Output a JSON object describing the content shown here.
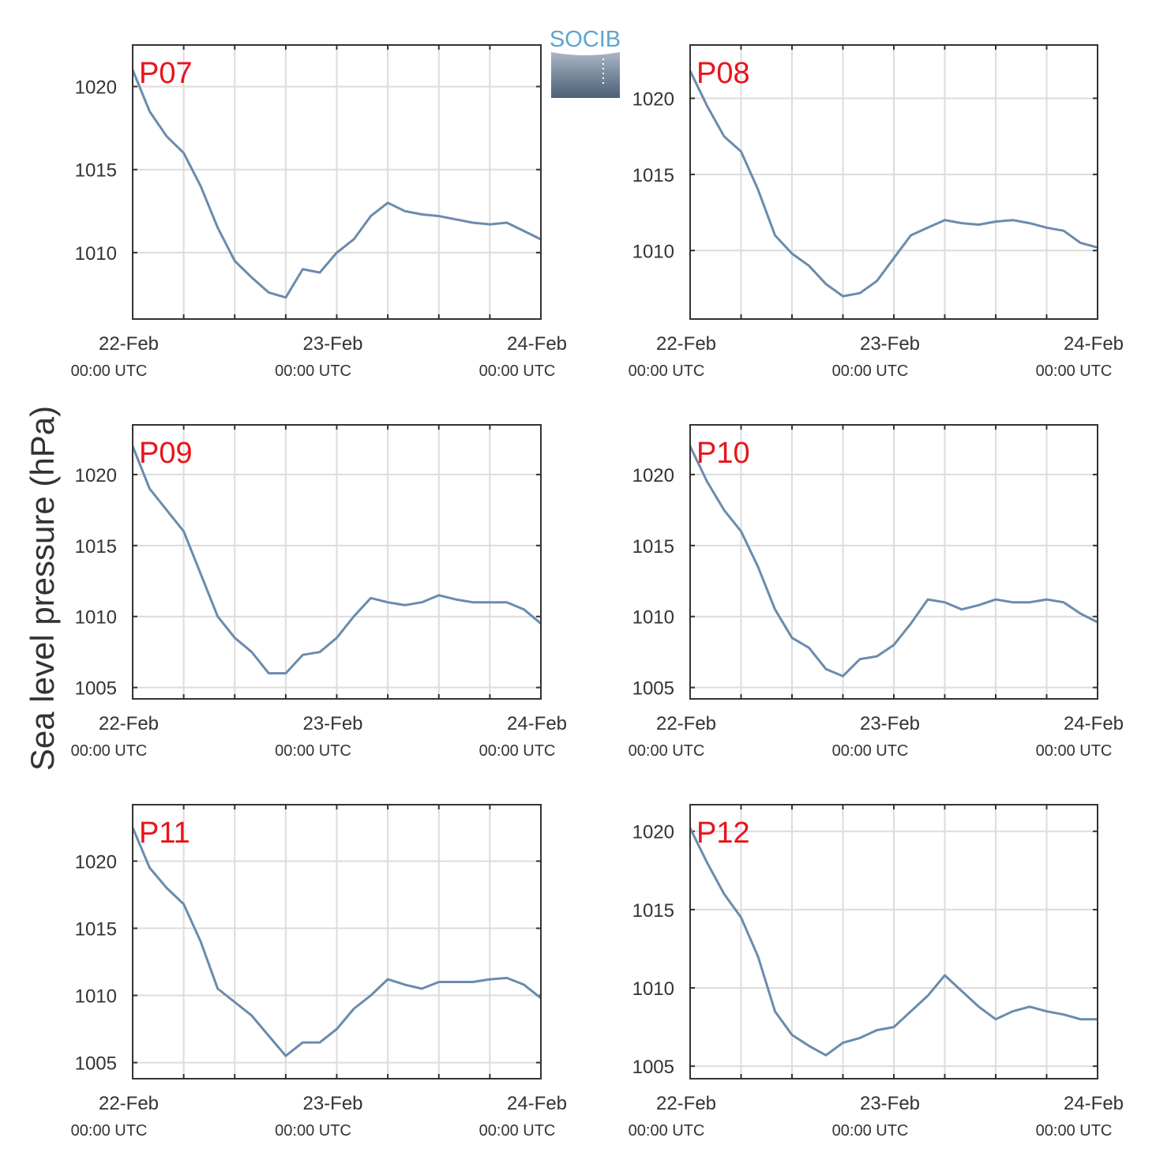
{
  "figure": {
    "ylabel": "Sea level pressure (hPa)",
    "logo_text": "SOCIB",
    "colors": {
      "line": "#6b8bac",
      "label": "#e8141b",
      "grid": "#dcdcdc",
      "axis": "#333333"
    }
  },
  "chart_data": [
    {
      "type": "line",
      "name": "P07",
      "ylim": [
        1006,
        1022.5
      ],
      "yticks": [
        1010,
        1015,
        1020
      ],
      "xticks": [
        {
          "date": "22-Feb",
          "time": "00:00 UTC"
        },
        {
          "date": "23-Feb",
          "time": "00:00 UTC"
        },
        {
          "date": "24-Feb",
          "time": "00:00 UTC"
        }
      ],
      "x_hours": [
        0,
        2,
        4,
        6,
        8,
        10,
        12,
        14,
        16,
        18,
        20,
        22,
        24,
        26,
        28,
        30,
        32,
        34,
        36,
        38,
        40,
        42,
        44,
        46,
        48
      ],
      "values": [
        1021.0,
        1018.5,
        1017.0,
        1016.0,
        1014.0,
        1011.5,
        1009.5,
        1008.5,
        1007.6,
        1007.3,
        1009.0,
        1008.8,
        1010.0,
        1010.8,
        1012.2,
        1013.0,
        1012.5,
        1012.3,
        1012.2,
        1012.0,
        1011.8,
        1011.7,
        1011.8,
        1011.3,
        1010.8
      ]
    },
    {
      "type": "line",
      "name": "P08",
      "ylim": [
        1005.5,
        1023.5
      ],
      "yticks": [
        1010,
        1015,
        1020
      ],
      "xticks": [
        {
          "date": "22-Feb",
          "time": "00:00 UTC"
        },
        {
          "date": "23-Feb",
          "time": "00:00 UTC"
        },
        {
          "date": "24-Feb",
          "time": "00:00 UTC"
        }
      ],
      "x_hours": [
        0,
        2,
        4,
        6,
        8,
        10,
        12,
        14,
        16,
        18,
        20,
        22,
        24,
        26,
        28,
        30,
        32,
        34,
        36,
        38,
        40,
        42,
        44,
        46,
        48
      ],
      "values": [
        1021.8,
        1019.5,
        1017.5,
        1016.5,
        1014.0,
        1011.0,
        1009.8,
        1009.0,
        1007.8,
        1007.0,
        1007.2,
        1008.0,
        1009.5,
        1011.0,
        1011.5,
        1012.0,
        1011.8,
        1011.7,
        1011.9,
        1012.0,
        1011.8,
        1011.5,
        1011.3,
        1010.5,
        1010.2
      ]
    },
    {
      "type": "line",
      "name": "P09",
      "ylim": [
        1004.2,
        1023.5
      ],
      "yticks": [
        1005,
        1010,
        1015,
        1020
      ],
      "xticks": [
        {
          "date": "22-Feb",
          "time": "00:00 UTC"
        },
        {
          "date": "23-Feb",
          "time": "00:00 UTC"
        },
        {
          "date": "24-Feb",
          "time": "00:00 UTC"
        }
      ],
      "x_hours": [
        0,
        2,
        4,
        6,
        8,
        10,
        12,
        14,
        16,
        18,
        20,
        22,
        24,
        26,
        28,
        30,
        32,
        34,
        36,
        38,
        40,
        42,
        44,
        46,
        48
      ],
      "values": [
        1022.0,
        1019.0,
        1017.5,
        1016.0,
        1013.0,
        1010.0,
        1008.5,
        1007.5,
        1006.0,
        1006.0,
        1007.3,
        1007.5,
        1008.5,
        1010.0,
        1011.3,
        1011.0,
        1010.8,
        1011.0,
        1011.5,
        1011.2,
        1011.0,
        1011.0,
        1011.0,
        1010.5,
        1009.5
      ]
    },
    {
      "type": "line",
      "name": "P10",
      "ylim": [
        1004.2,
        1023.5
      ],
      "yticks": [
        1005,
        1010,
        1015,
        1020
      ],
      "xticks": [
        {
          "date": "22-Feb",
          "time": "00:00 UTC"
        },
        {
          "date": "23-Feb",
          "time": "00:00 UTC"
        },
        {
          "date": "24-Feb",
          "time": "00:00 UTC"
        }
      ],
      "x_hours": [
        0,
        2,
        4,
        6,
        8,
        10,
        12,
        14,
        16,
        18,
        20,
        22,
        24,
        26,
        28,
        30,
        32,
        34,
        36,
        38,
        40,
        42,
        44,
        46,
        48
      ],
      "values": [
        1022.0,
        1019.5,
        1017.5,
        1016.0,
        1013.5,
        1010.5,
        1008.5,
        1007.8,
        1006.3,
        1005.8,
        1007.0,
        1007.2,
        1008.0,
        1009.5,
        1011.2,
        1011.0,
        1010.5,
        1010.8,
        1011.2,
        1011.0,
        1011.0,
        1011.2,
        1011.0,
        1010.2,
        1009.6
      ]
    },
    {
      "type": "line",
      "name": "P11",
      "ylim": [
        1003.8,
        1024.2
      ],
      "yticks": [
        1005,
        1010,
        1015,
        1020
      ],
      "xticks": [
        {
          "date": "22-Feb",
          "time": "00:00 UTC"
        },
        {
          "date": "23-Feb",
          "time": "00:00 UTC"
        },
        {
          "date": "24-Feb",
          "time": "00:00 UTC"
        }
      ],
      "x_hours": [
        0,
        2,
        4,
        6,
        8,
        10,
        12,
        14,
        16,
        18,
        20,
        22,
        24,
        26,
        28,
        30,
        32,
        34,
        36,
        38,
        40,
        42,
        44,
        46,
        48
      ],
      "values": [
        1022.5,
        1019.5,
        1018.0,
        1016.8,
        1014.0,
        1010.5,
        1009.5,
        1008.5,
        1007.0,
        1005.5,
        1006.5,
        1006.5,
        1007.5,
        1009.0,
        1010.0,
        1011.2,
        1010.8,
        1010.5,
        1011.0,
        1011.0,
        1011.0,
        1011.2,
        1011.3,
        1010.8,
        1009.8
      ]
    },
    {
      "type": "line",
      "name": "P12",
      "ylim": [
        1004.2,
        1021.7
      ],
      "yticks": [
        1005,
        1010,
        1015,
        1020
      ],
      "xticks": [
        {
          "date": "22-Feb",
          "time": "00:00 UTC"
        },
        {
          "date": "23-Feb",
          "time": "00:00 UTC"
        },
        {
          "date": "24-Feb",
          "time": "00:00 UTC"
        }
      ],
      "x_hours": [
        0,
        2,
        4,
        6,
        8,
        10,
        12,
        14,
        16,
        18,
        20,
        22,
        24,
        26,
        28,
        30,
        32,
        34,
        36,
        38,
        40,
        42,
        44,
        46,
        48
      ],
      "values": [
        1020.2,
        1018.0,
        1016.0,
        1014.5,
        1012.0,
        1008.5,
        1007.0,
        1006.3,
        1005.7,
        1006.5,
        1006.8,
        1007.3,
        1007.5,
        1008.5,
        1009.5,
        1010.8,
        1009.8,
        1008.8,
        1008.0,
        1008.5,
        1008.8,
        1008.5,
        1008.3,
        1008.0,
        1008.0
      ]
    }
  ]
}
